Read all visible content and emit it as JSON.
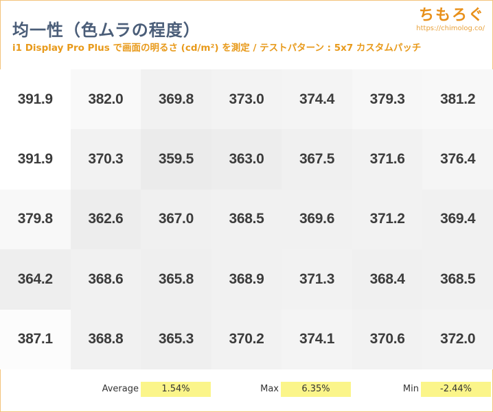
{
  "header": {
    "title": "均一性（色ムラの程度）",
    "subtitle": "i1 Display Pro Plus で画面の明るさ (cd/m²) を測定 / テストパターン : 5x7 カスタムパッチ",
    "logo_text": "ちもろぐ",
    "logo_url": "https://chimolog.co/"
  },
  "chart_data": {
    "type": "heatmap",
    "rows": 5,
    "cols": 7,
    "values": [
      [
        "391.9",
        "382.0",
        "369.8",
        "373.0",
        "374.4",
        "379.3",
        "381.2"
      ],
      [
        "391.9",
        "370.3",
        "359.5",
        "363.0",
        "367.5",
        "371.6",
        "376.4"
      ],
      [
        "379.8",
        "362.6",
        "367.0",
        "368.5",
        "369.6",
        "371.2",
        "369.4"
      ],
      [
        "364.2",
        "368.6",
        "365.8",
        "368.9",
        "371.3",
        "368.4",
        "368.5"
      ],
      [
        "387.1",
        "368.8",
        "365.3",
        "370.2",
        "374.1",
        "370.6",
        "372.0"
      ]
    ],
    "color_scale": {
      "low": "#ebebeb",
      "high": "#ffffff"
    }
  },
  "stats": [
    {
      "label": "Average",
      "value": "1.54%"
    },
    {
      "label": "Max",
      "value": "6.35%"
    },
    {
      "label": "Min",
      "value": "-2.44%"
    }
  ]
}
